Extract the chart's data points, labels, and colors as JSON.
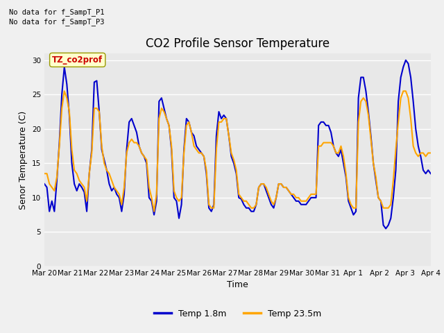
{
  "title": "CO2 Profile Sensor Temperature",
  "xlabel": "Time",
  "ylabel": "Senor Temperature (C)",
  "annotation_lines": [
    "No data for f_SampT_P1",
    "No data for f_SampT_P3"
  ],
  "tz_label": "TZ_co2prof",
  "ylim": [
    0,
    31
  ],
  "yticks": [
    0,
    5,
    10,
    15,
    20,
    25,
    30
  ],
  "xtick_labels": [
    "Mar 20",
    "Mar 21",
    "Mar 22",
    "Mar 23",
    "Mar 24",
    "Mar 25",
    "Mar 26",
    "Mar 27",
    "Mar 28",
    "Mar 29",
    "Mar 30",
    "Mar 31",
    "Apr 1",
    "Apr 2",
    "Apr 3",
    "Apr 4"
  ],
  "line1_color": "#0000cc",
  "line2_color": "#ffa500",
  "line1_label": "Temp 1.8m",
  "line2_label": "Temp 23.5m",
  "line_width": 1.5,
  "bg_color": "#e8e8e8",
  "grid_color": "#ffffff",
  "title_fontsize": 12,
  "axis_fontsize": 9,
  "tick_fontsize": 7.5,
  "annot_fontsize": 7.5,
  "tz_fontsize": 8.5,
  "legend_fontsize": 9,
  "temp1": [
    12.0,
    11.5,
    8.0,
    9.5,
    8.0,
    12.5,
    18.0,
    25.0,
    29.0,
    26.5,
    22.0,
    15.0,
    12.0,
    11.0,
    12.0,
    11.5,
    10.8,
    8.0,
    13.5,
    17.0,
    26.8,
    27.0,
    22.5,
    17.0,
    15.5,
    14.0,
    12.0,
    11.0,
    11.5,
    10.5,
    10.0,
    8.0,
    10.5,
    17.0,
    21.0,
    21.5,
    20.5,
    19.5,
    17.5,
    16.5,
    16.0,
    15.0,
    10.0,
    9.5,
    7.5,
    9.5,
    24.0,
    24.5,
    23.0,
    21.5,
    20.5,
    17.0,
    10.0,
    9.5,
    7.0,
    9.0,
    17.0,
    21.5,
    21.0,
    19.5,
    19.0,
    17.5,
    17.0,
    16.5,
    16.0,
    13.5,
    8.5,
    8.0,
    9.0,
    19.0,
    22.5,
    21.5,
    22.0,
    21.5,
    19.0,
    16.0,
    15.0,
    13.5,
    10.0,
    9.8,
    9.0,
    8.5,
    8.5,
    8.0,
    8.0,
    9.0,
    11.5,
    12.0,
    12.0,
    11.0,
    10.0,
    9.0,
    8.5,
    10.0,
    12.0,
    12.0,
    11.5,
    11.5,
    11.0,
    10.5,
    10.0,
    9.5,
    9.5,
    9.0,
    9.0,
    9.0,
    9.5,
    10.0,
    10.0,
    10.0,
    20.5,
    21.0,
    21.0,
    20.5,
    20.5,
    19.5,
    17.5,
    16.5,
    16.0,
    17.0,
    15.0,
    13.0,
    9.5,
    8.5,
    7.5,
    8.0,
    24.5,
    27.5,
    27.5,
    25.5,
    22.5,
    19.0,
    15.0,
    12.5,
    10.0,
    9.5,
    6.0,
    5.5,
    6.0,
    7.0,
    10.0,
    14.0,
    24.0,
    27.5,
    29.0,
    30.0,
    29.5,
    27.5,
    24.0,
    20.0,
    17.5,
    16.0,
    14.0,
    13.5,
    14.0,
    13.5
  ],
  "temp2": [
    13.5,
    13.5,
    12.0,
    11.5,
    11.0,
    13.0,
    17.5,
    23.0,
    25.5,
    24.5,
    22.5,
    17.0,
    14.0,
    13.5,
    12.5,
    12.0,
    11.5,
    9.5,
    13.5,
    16.5,
    23.0,
    23.0,
    22.5,
    17.5,
    15.0,
    14.0,
    13.5,
    12.5,
    11.5,
    11.0,
    10.5,
    9.0,
    11.5,
    16.5,
    18.0,
    18.5,
    18.0,
    18.0,
    17.5,
    16.5,
    16.0,
    15.5,
    11.5,
    10.0,
    8.0,
    10.5,
    21.5,
    23.0,
    22.5,
    21.5,
    20.5,
    17.5,
    11.0,
    10.0,
    9.5,
    10.0,
    16.5,
    20.5,
    21.0,
    19.5,
    17.5,
    17.0,
    16.5,
    16.5,
    16.0,
    14.0,
    9.0,
    8.5,
    8.5,
    17.0,
    21.0,
    21.0,
    21.5,
    21.5,
    19.0,
    16.5,
    15.5,
    14.0,
    10.5,
    10.0,
    9.5,
    9.5,
    9.0,
    8.5,
    8.5,
    9.0,
    11.5,
    12.0,
    12.0,
    11.5,
    10.5,
    9.5,
    9.0,
    10.0,
    12.0,
    12.0,
    11.5,
    11.5,
    11.0,
    10.5,
    10.5,
    10.0,
    10.0,
    9.5,
    9.5,
    9.5,
    10.0,
    10.5,
    10.5,
    10.5,
    17.5,
    17.5,
    18.0,
    18.0,
    18.0,
    18.0,
    17.5,
    16.5,
    16.5,
    17.5,
    16.0,
    13.5,
    10.0,
    9.0,
    8.5,
    8.5,
    21.0,
    24.0,
    24.5,
    24.0,
    22.0,
    18.5,
    15.0,
    13.0,
    10.0,
    9.5,
    8.5,
    8.5,
    8.5,
    9.0,
    12.5,
    17.0,
    21.0,
    24.5,
    25.5,
    25.5,
    24.5,
    21.5,
    17.5,
    16.5,
    16.0,
    16.5,
    16.5,
    16.0,
    16.5,
    16.5
  ]
}
